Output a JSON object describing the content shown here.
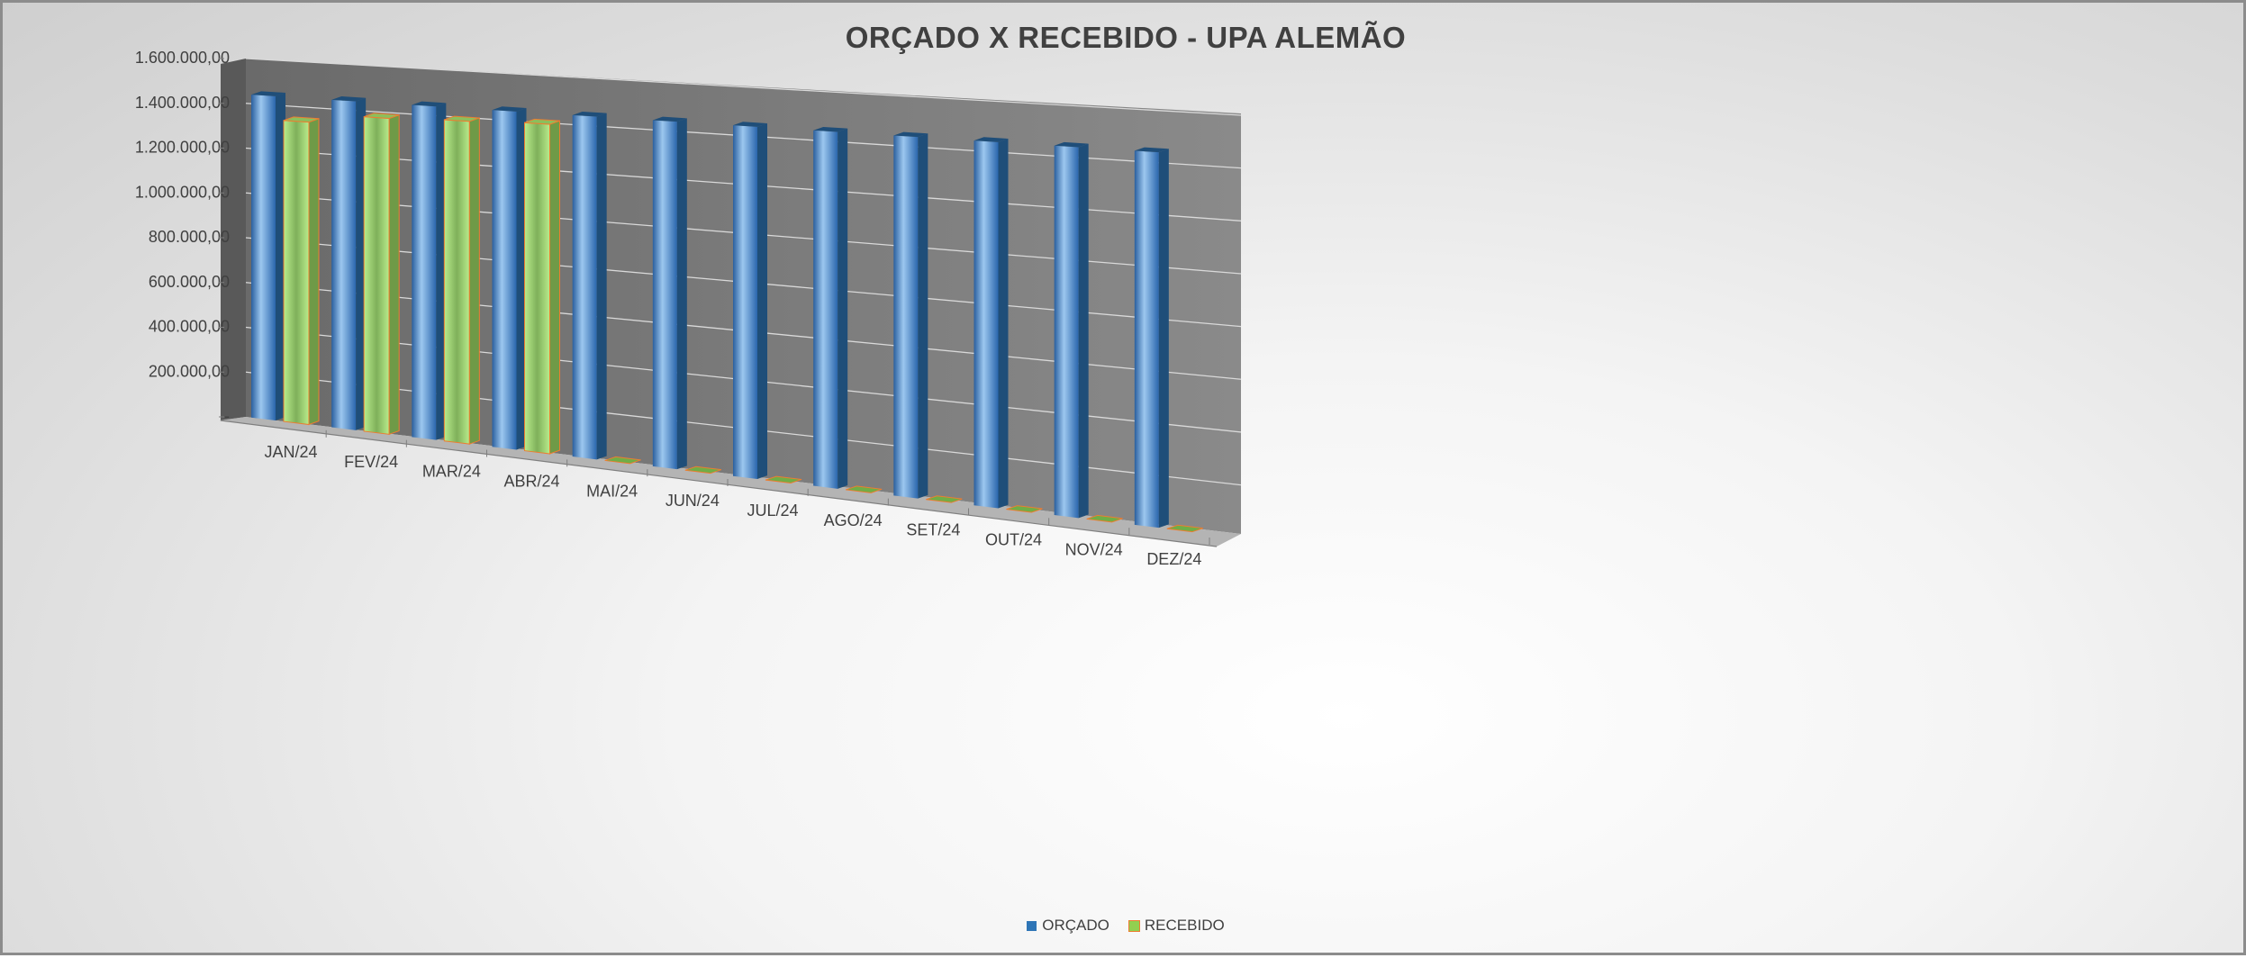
{
  "chart_data": {
    "type": "bar",
    "title": "ORÇADO X RECEBIDO - UPA ALEMÃO",
    "categories": [
      "JAN/24",
      "FEV/24",
      "MAR/24",
      "ABR/24",
      "MAI/24",
      "JUN/24",
      "JUL/24",
      "AGO/24",
      "SET/24",
      "OUT/24",
      "NOV/24",
      "DEZ/24"
    ],
    "series": [
      {
        "name": "ORÇADO",
        "values": [
          1440000,
          1440000,
          1440000,
          1440000,
          1440000,
          1440000,
          1440000,
          1440000,
          1440000,
          1440000,
          1440000,
          1440000
        ]
      },
      {
        "name": "RECEBIDO",
        "values": [
          1335000,
          1375000,
          1385000,
          1395000,
          0,
          0,
          0,
          0,
          0,
          0,
          0,
          0
        ]
      }
    ],
    "ylim": [
      0,
      1600000
    ],
    "yticks": [
      0,
      200000,
      400000,
      600000,
      800000,
      1000000,
      1200000,
      1400000,
      1600000
    ],
    "ytick_labels": [
      "-",
      "200.000,00",
      "400.000,00",
      "600.000,00",
      "800.000,00",
      "1.000.000,00",
      "1.200.000,00",
      "1.400.000,00",
      "1.600.000,00"
    ],
    "xlabel": "",
    "ylabel": "",
    "legend": "bottom",
    "grid": true,
    "colors": {
      "orcado": "#2e75b6",
      "recebido": "#92d050",
      "recebido_edge": "#ed7d31",
      "wall": "#808080"
    }
  }
}
